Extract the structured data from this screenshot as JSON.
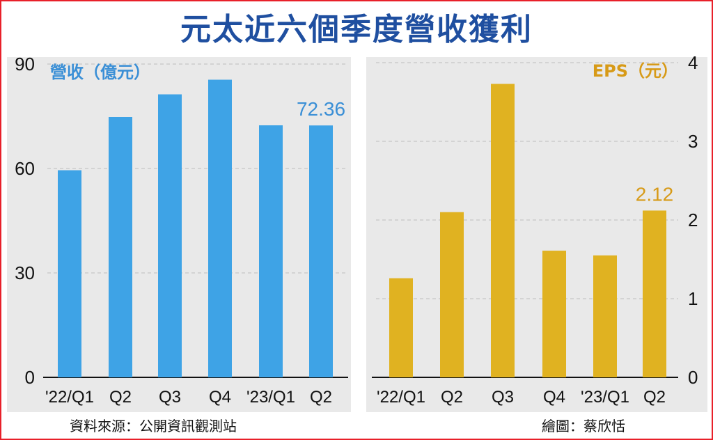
{
  "title": "元太近六個季度營收獲利",
  "source": "資料來源：公開資訊觀測站",
  "credit": "繪圖：蔡欣恬",
  "chart_data": [
    {
      "type": "bar",
      "ylabel": "營收（億元）",
      "categories": [
        "'22/Q1",
        "Q2",
        "Q3",
        "Q4",
        "'23/Q1",
        "Q2"
      ],
      "values": [
        59.5,
        74.8,
        81.3,
        85.5,
        72.4,
        72.36
      ],
      "ylim": [
        0,
        90
      ],
      "yticks": [
        0,
        30,
        60,
        90
      ],
      "grid": true,
      "color": "#3ea3e6",
      "value_label": "72.36",
      "label_color": "#3a8fd6"
    },
    {
      "type": "bar",
      "ylabel": "EPS（元）",
      "categories": [
        "'22/Q1",
        "Q2",
        "Q3",
        "Q4",
        "'23/Q1",
        "Q2"
      ],
      "values": [
        1.26,
        2.1,
        3.73,
        1.61,
        1.55,
        2.12
      ],
      "ylim": [
        0,
        4
      ],
      "yticks": [
        0,
        1,
        2,
        3,
        4
      ],
      "grid": true,
      "color": "#e0b221",
      "value_label": "2.12",
      "label_color": "#d79a17"
    }
  ]
}
